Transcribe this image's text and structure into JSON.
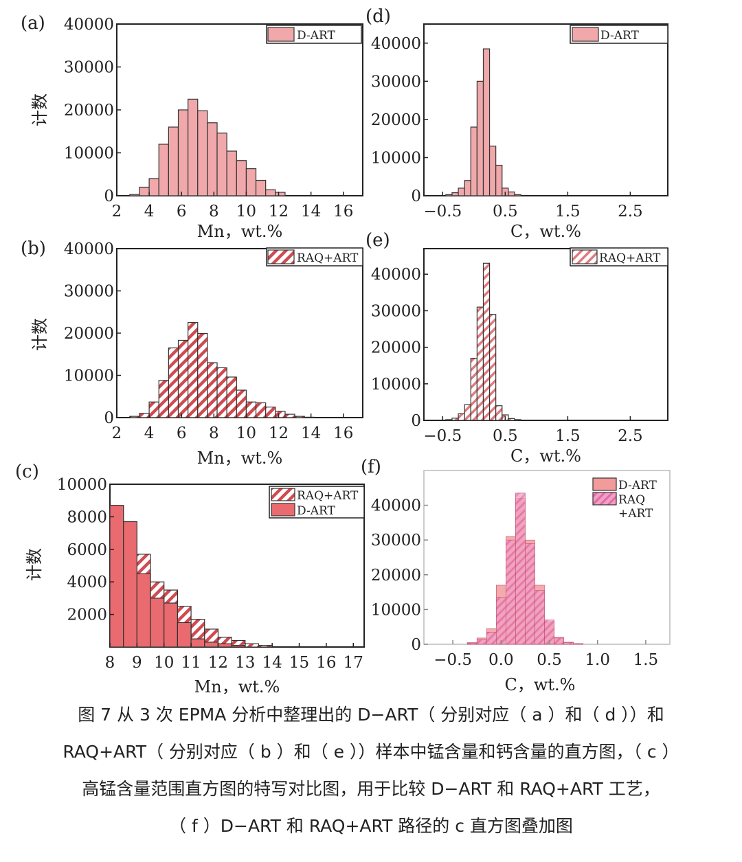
{
  "chart_data": [
    {
      "id": "a",
      "panel_label": "(a)",
      "type": "bar",
      "style": "solid",
      "xlabel": "Mn，wt.%",
      "ylabel": "计数",
      "xlim": [
        2,
        17.2
      ],
      "ylim": [
        0,
        40000
      ],
      "xticks": [
        "2",
        "4",
        "6",
        "8",
        "10",
        "12",
        "14",
        "16"
      ],
      "xtick_values": [
        2,
        4,
        6,
        8,
        10,
        12,
        14,
        16
      ],
      "yticks": [
        "0",
        "10000",
        "20000",
        "30000",
        "40000"
      ],
      "ytick_values": [
        0,
        10000,
        20000,
        30000,
        40000
      ],
      "bin_width": 0.6,
      "series": [
        {
          "name": "D-ART",
          "color": "#f0a8ab",
          "x": [
            3.1,
            3.7,
            4.3,
            4.9,
            5.5,
            6.1,
            6.7,
            7.3,
            7.9,
            8.5,
            9.1,
            9.7,
            10.3,
            10.9,
            11.5,
            12.1
          ],
          "values": [
            300,
            2000,
            4000,
            12000,
            16000,
            20000,
            22500,
            19800,
            17000,
            14600,
            10400,
            8200,
            6300,
            3600,
            1400,
            800
          ]
        }
      ]
    },
    {
      "id": "b",
      "panel_label": "(b)",
      "type": "bar",
      "style": "hatched",
      "xlabel": "Mn，wt.%",
      "ylabel": "计数",
      "xlim": [
        2,
        17.2
      ],
      "ylim": [
        0,
        40000
      ],
      "xticks": [
        "2",
        "4",
        "6",
        "8",
        "10",
        "12",
        "14",
        "16"
      ],
      "xtick_values": [
        2,
        4,
        6,
        8,
        10,
        12,
        14,
        16
      ],
      "yticks": [
        "0",
        "10000",
        "20000",
        "30000",
        "40000"
      ],
      "ytick_values": [
        0,
        10000,
        20000,
        30000,
        40000
      ],
      "bin_width": 0.6,
      "series": [
        {
          "name": "RAQ+ART",
          "color": "#d04a50",
          "x": [
            3.1,
            3.7,
            4.3,
            4.9,
            5.5,
            6.1,
            6.7,
            7.3,
            7.9,
            8.5,
            9.1,
            9.7,
            10.3,
            10.9,
            11.5,
            12.1,
            12.7,
            13.3,
            13.9
          ],
          "values": [
            300,
            1000,
            3700,
            8800,
            16500,
            18300,
            22500,
            19900,
            13000,
            11800,
            9600,
            6500,
            3700,
            3500,
            2500,
            1500,
            800,
            300,
            100
          ]
        }
      ]
    },
    {
      "id": "c",
      "panel_label": "(c)",
      "type": "bar",
      "style": "overlay",
      "xlabel": "Mn，wt.%",
      "ylabel": "计数",
      "xlim": [
        8,
        17.4
      ],
      "ylim": [
        0,
        10000
      ],
      "xticks": [
        "8",
        "9",
        "10",
        "11",
        "12",
        "13",
        "14",
        "15",
        "16",
        "17"
      ],
      "xtick_values": [
        8,
        9,
        10,
        11,
        12,
        13,
        14,
        15,
        16,
        17
      ],
      "yticks": [
        "2000",
        "4000",
        "6000",
        "8000",
        "10000"
      ],
      "ytick_values": [
        2000,
        4000,
        6000,
        8000,
        10000
      ],
      "bin_width": 0.5,
      "series": [
        {
          "name": "RAQ+ART",
          "color": "#d04a50",
          "x": [
            8.25,
            8.75,
            9.25,
            9.75,
            10.25,
            10.75,
            11.25,
            11.75,
            12.25,
            12.75,
            13.25,
            13.75
          ],
          "values": [
            8700,
            7700,
            5700,
            4000,
            3500,
            2500,
            1700,
            1100,
            600,
            400,
            200,
            100
          ]
        },
        {
          "name": "D-ART",
          "color": "#e96a6f",
          "x": [
            8.25,
            8.75,
            9.25,
            9.75,
            10.25,
            10.75,
            11.25,
            11.75,
            12.25,
            12.75,
            13.25,
            13.75
          ],
          "values": [
            8700,
            7700,
            4500,
            3000,
            2700,
            1500,
            500,
            300,
            200,
            100,
            0,
            0
          ]
        }
      ]
    },
    {
      "id": "d",
      "panel_label": "(d)",
      "type": "bar",
      "style": "solid",
      "xlabel": "C，wt.%",
      "ylabel": "",
      "xlim": [
        -0.8,
        3.1
      ],
      "ylim": [
        0,
        45000
      ],
      "xticks": [
        "−0.5",
        "0.5",
        "1.5",
        "2.5"
      ],
      "xtick_values": [
        -0.5,
        0.5,
        1.5,
        2.5
      ],
      "yticks": [
        "0",
        "10000",
        "20000",
        "30000",
        "40000"
      ],
      "ytick_values": [
        0,
        10000,
        20000,
        30000,
        40000
      ],
      "bin_width": 0.1,
      "series": [
        {
          "name": "D-ART",
          "color": "#f0a8ab",
          "x": [
            -0.4,
            -0.3,
            -0.2,
            -0.1,
            0.0,
            0.1,
            0.2,
            0.3,
            0.4,
            0.5,
            0.6,
            0.7
          ],
          "values": [
            300,
            800,
            2000,
            4000,
            18000,
            30000,
            38500,
            13000,
            8000,
            2000,
            1000,
            300
          ]
        }
      ]
    },
    {
      "id": "e",
      "panel_label": "(e)",
      "type": "bar",
      "style": "hatched",
      "xlabel": "C，wt.%",
      "ylabel": "",
      "xlim": [
        -0.8,
        3.1
      ],
      "ylim": [
        0,
        47000
      ],
      "xticks": [
        "−0.5",
        "0.5",
        "1.5",
        "2.5"
      ],
      "xtick_values": [
        -0.5,
        0.5,
        1.5,
        2.5
      ],
      "yticks": [
        "0",
        "10000",
        "20000",
        "30000",
        "40000"
      ],
      "ytick_values": [
        0,
        10000,
        20000,
        30000,
        40000
      ],
      "bin_width": 0.1,
      "series": [
        {
          "name": "RAQ+ART",
          "color": "#d04a50",
          "x": [
            -0.4,
            -0.3,
            -0.2,
            -0.1,
            0.0,
            0.1,
            0.2,
            0.3,
            0.4,
            0.5,
            0.6,
            0.7
          ],
          "values": [
            200,
            600,
            1800,
            4300,
            17000,
            31000,
            43000,
            29000,
            4000,
            1500,
            500,
            200
          ]
        }
      ]
    },
    {
      "id": "f",
      "panel_label": "(f)",
      "type": "bar",
      "style": "translucent-overlay",
      "xlabel": "C，wt.%",
      "ylabel": "",
      "xlim": [
        -0.8,
        1.75
      ],
      "ylim": [
        0,
        50000
      ],
      "xticks": [
        "−0.5",
        "0.0",
        "0.5",
        "1.0",
        "1.5"
      ],
      "xtick_values": [
        -0.5,
        0.0,
        0.5,
        1.0,
        1.5
      ],
      "yticks": [
        "0",
        "10000",
        "20000",
        "30000",
        "40000"
      ],
      "ytick_values": [
        0,
        10000,
        20000,
        30000,
        40000
      ],
      "bin_width": 0.1,
      "series": [
        {
          "name": "D-ART",
          "color": "#f08f8f",
          "x": [
            -0.3,
            -0.2,
            -0.1,
            0.0,
            0.1,
            0.2,
            0.3,
            0.4,
            0.5,
            0.6,
            0.7,
            0.8
          ],
          "values": [
            500,
            1800,
            4500,
            17000,
            31000,
            42000,
            30000,
            17000,
            6500,
            2000,
            600,
            200
          ]
        },
        {
          "name": "RAQ\n+ART",
          "color": "#e85a9e",
          "x": [
            -0.3,
            -0.2,
            -0.1,
            0.0,
            0.1,
            0.2,
            0.3,
            0.4,
            0.5,
            0.6,
            0.7,
            0.8
          ],
          "values": [
            300,
            1300,
            3500,
            13500,
            30000,
            43500,
            29000,
            15500,
            7000,
            1800,
            500,
            200
          ]
        }
      ]
    }
  ],
  "caption": {
    "line1": "图 7  从 3 次 EPMA 分析中整理出的 D−ART（ 分别对应（ a ）和（ d ））和",
    "line2": "RAQ+ART（ 分别对应（ b ）和（ e ））样本中锰含量和钙含量的直方图，（ c ）",
    "line3": "高锰含量范围直方图的特写对比图，用于比较 D−ART 和 RAQ+ART 工艺，",
    "line4": "（ f ）D−ART 和 RAQ+ART 路径的 c 直方图叠加图"
  }
}
